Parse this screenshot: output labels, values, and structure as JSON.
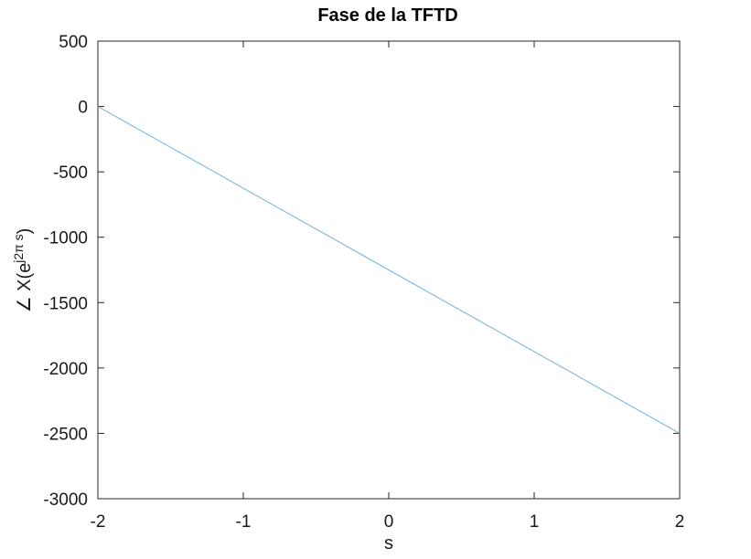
{
  "chart_data": {
    "type": "line",
    "title": "Fase de la TFTD",
    "xlabel": "s",
    "ylabel_text": "∠ X(e",
    "ylabel_superscript": "j2π s",
    "ylabel_close": ")",
    "xlim": [
      -2,
      2
    ],
    "ylim": [
      -3000,
      500
    ],
    "xticks": [
      -2,
      -1,
      0,
      1,
      2
    ],
    "xtick_labels": [
      "-2",
      "-1",
      "0",
      "1",
      "2"
    ],
    "yticks": [
      -3000,
      -2500,
      -2000,
      -1500,
      -1000,
      -500,
      0,
      500
    ],
    "ytick_labels": [
      "-3000",
      "-2500",
      "-2000",
      "-1500",
      "-1000",
      "-500",
      "0",
      "500"
    ],
    "grid": false,
    "line_color": "#6fb1e0",
    "series": [
      {
        "x": [
          -2,
          2
        ],
        "y": [
          0,
          -2500
        ]
      }
    ]
  }
}
